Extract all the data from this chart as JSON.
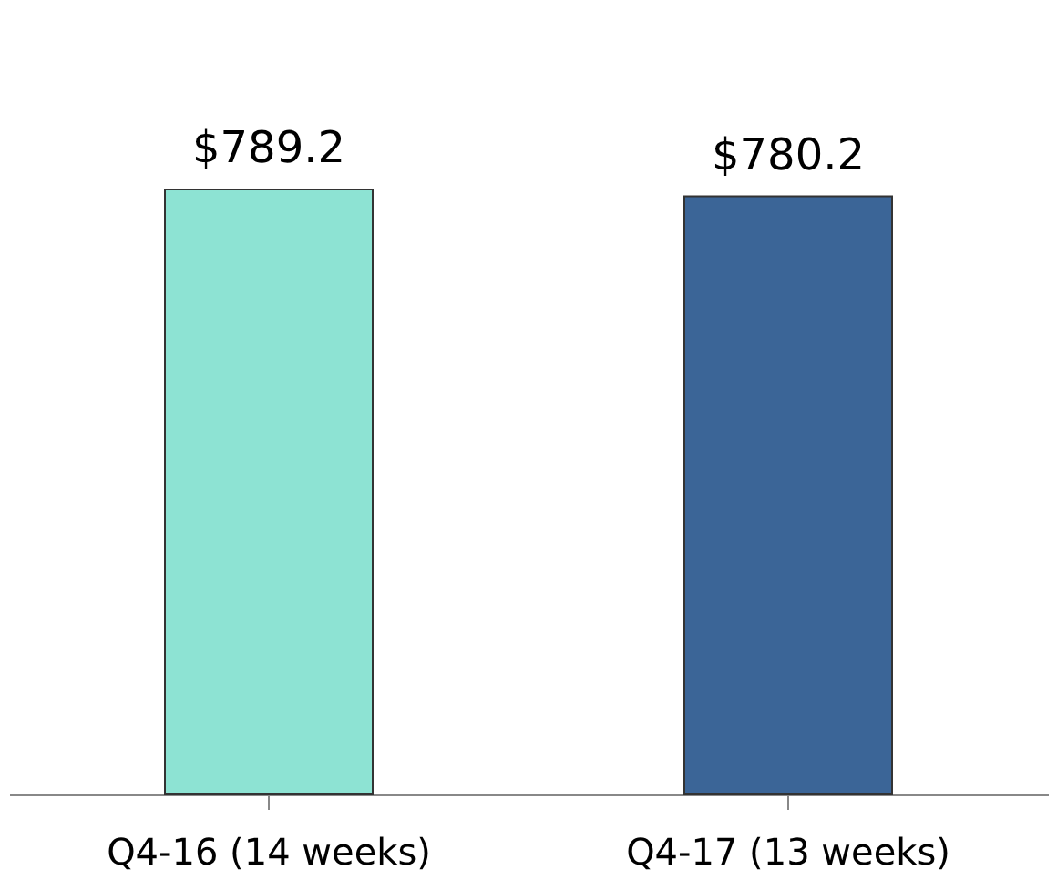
{
  "chart_data": {
    "type": "bar",
    "categories": [
      "Q4-16 (14 weeks)",
      "Q4-17 (13 weeks)"
    ],
    "values": [
      789.2,
      780.2
    ],
    "colors": [
      "#8de3d3",
      "#3b6597"
    ],
    "value_labels": [
      "$789.2",
      "$780.2"
    ],
    "tick_labels": "x",
    "grid": false
  }
}
